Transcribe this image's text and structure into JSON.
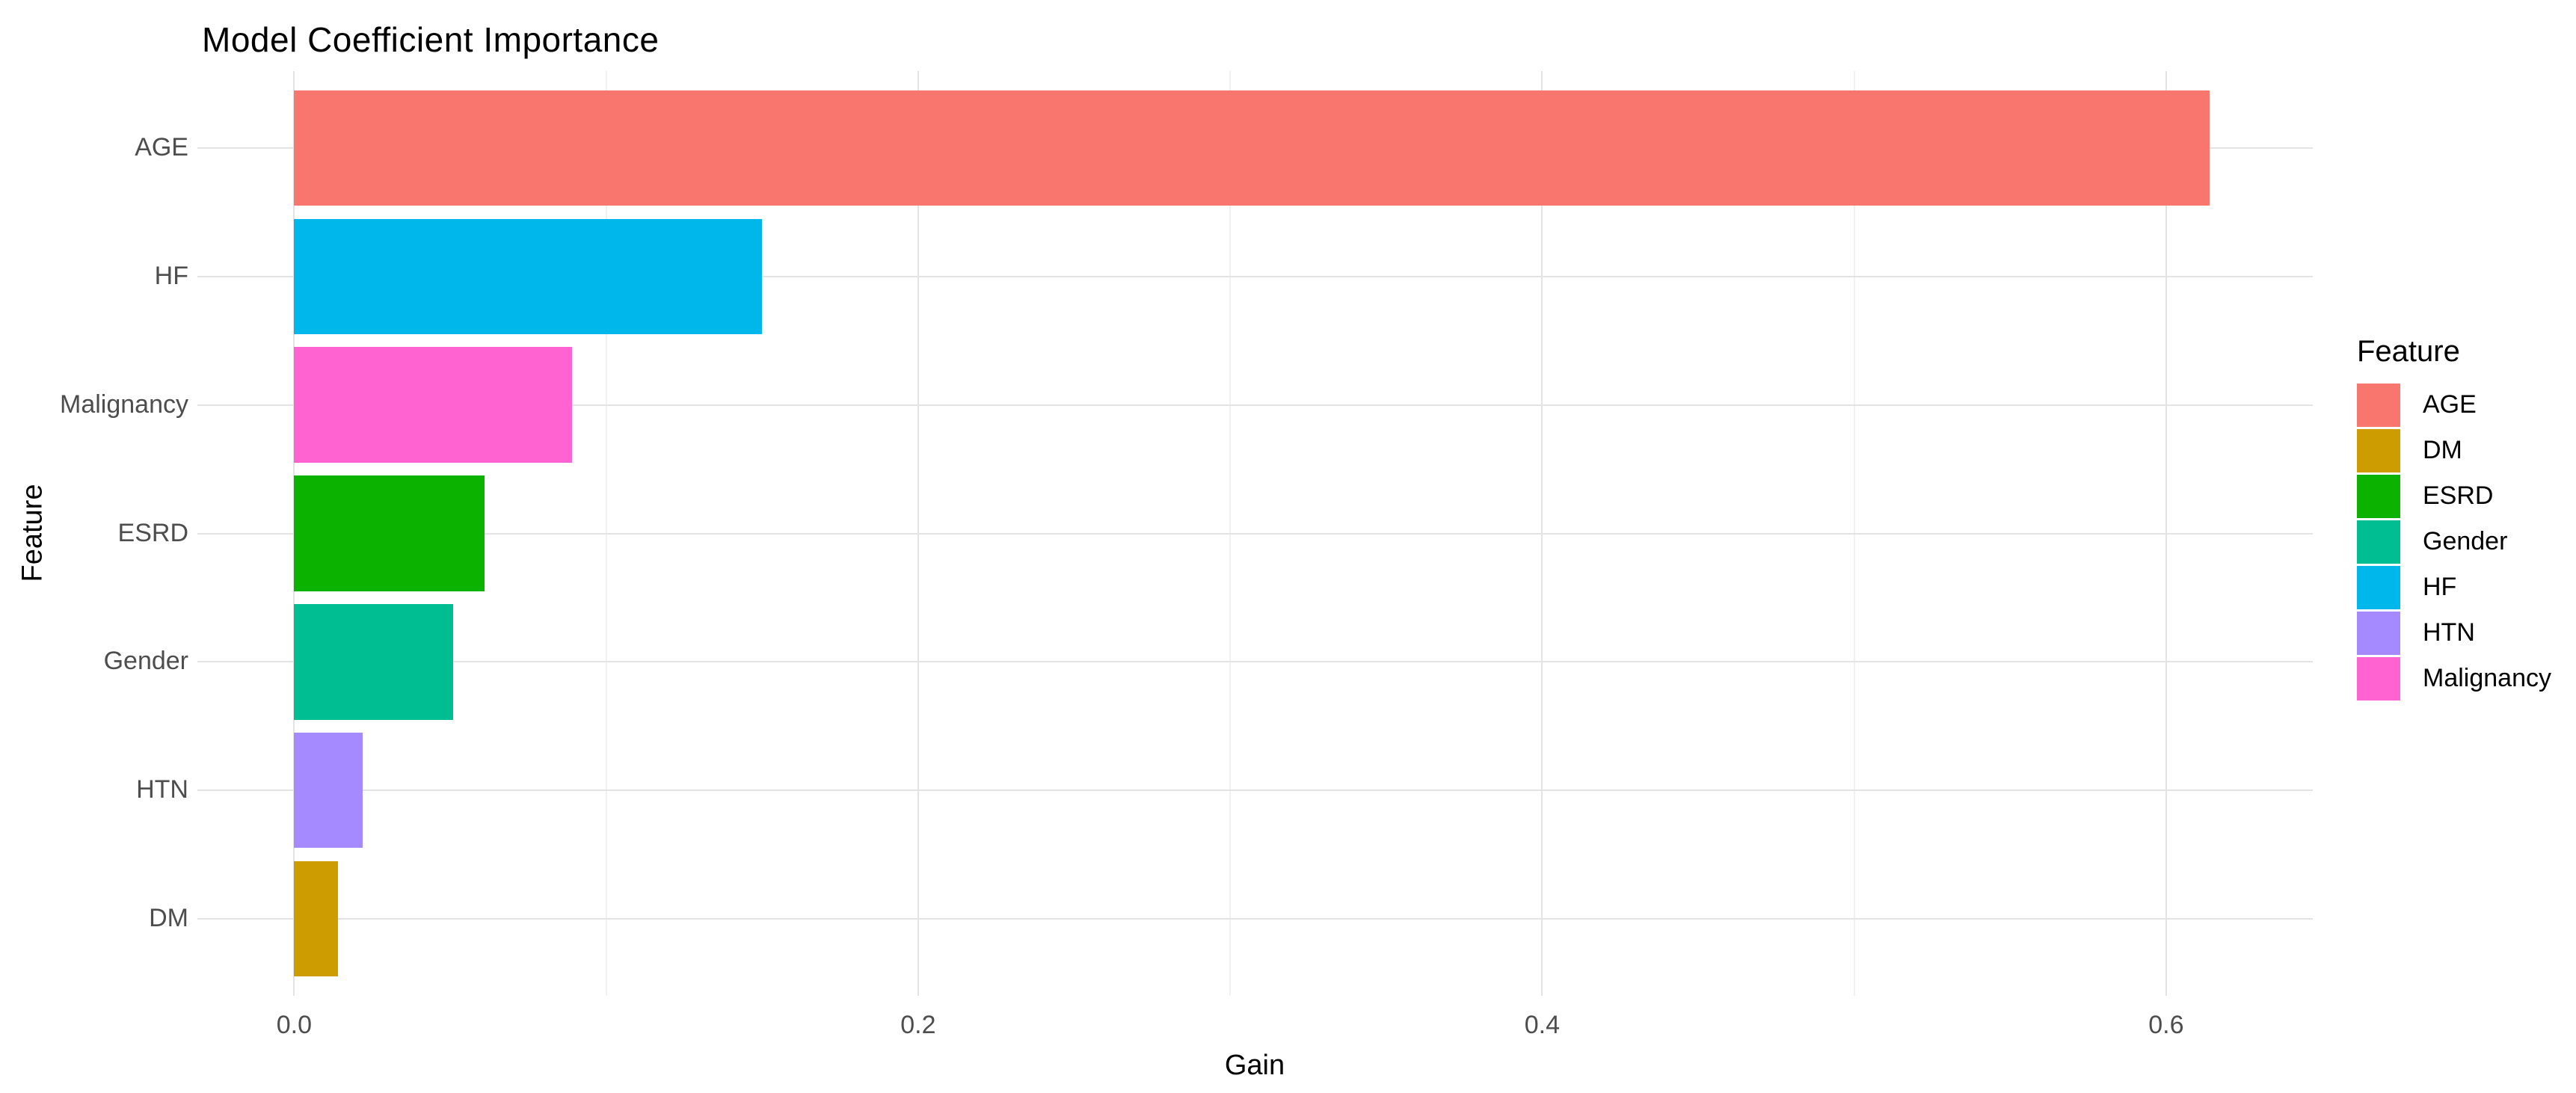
{
  "chart_data": {
    "type": "bar",
    "orientation": "horizontal",
    "title": "Model Coefficient Importance",
    "xlabel": "Gain",
    "ylabel": "Feature",
    "categories": [
      "AGE",
      "HF",
      "Malignancy",
      "ESRD",
      "Gender",
      "HTN",
      "DM"
    ],
    "values": [
      0.614,
      0.15,
      0.089,
      0.061,
      0.051,
      0.022,
      0.014
    ],
    "bar_colors": [
      "#F8766D",
      "#00B7EB",
      "#FF63D1",
      "#0BB300",
      "#00BD92",
      "#A58AFF",
      "#CD9C00"
    ],
    "xlim": [
      -0.031,
      0.647
    ],
    "x_ticks": [
      {
        "label": "0.0",
        "value": 0.0
      },
      {
        "label": "0.2",
        "value": 0.2
      },
      {
        "label": "0.4",
        "value": 0.4
      },
      {
        "label": "0.6",
        "value": 0.6
      }
    ],
    "x_minor_ticks": [
      0.1,
      0.3,
      0.5
    ],
    "grid": true,
    "legend": {
      "title": "Feature",
      "position": "right",
      "entries": [
        {
          "label": "AGE",
          "color": "#F8766D"
        },
        {
          "label": "DM",
          "color": "#CD9C00"
        },
        {
          "label": "ESRD",
          "color": "#0BB300"
        },
        {
          "label": "Gender",
          "color": "#00BD92"
        },
        {
          "label": "HF",
          "color": "#00B7EB"
        },
        {
          "label": "HTN",
          "color": "#A58AFF"
        },
        {
          "label": "Malignancy",
          "color": "#FF63D1"
        }
      ]
    }
  }
}
